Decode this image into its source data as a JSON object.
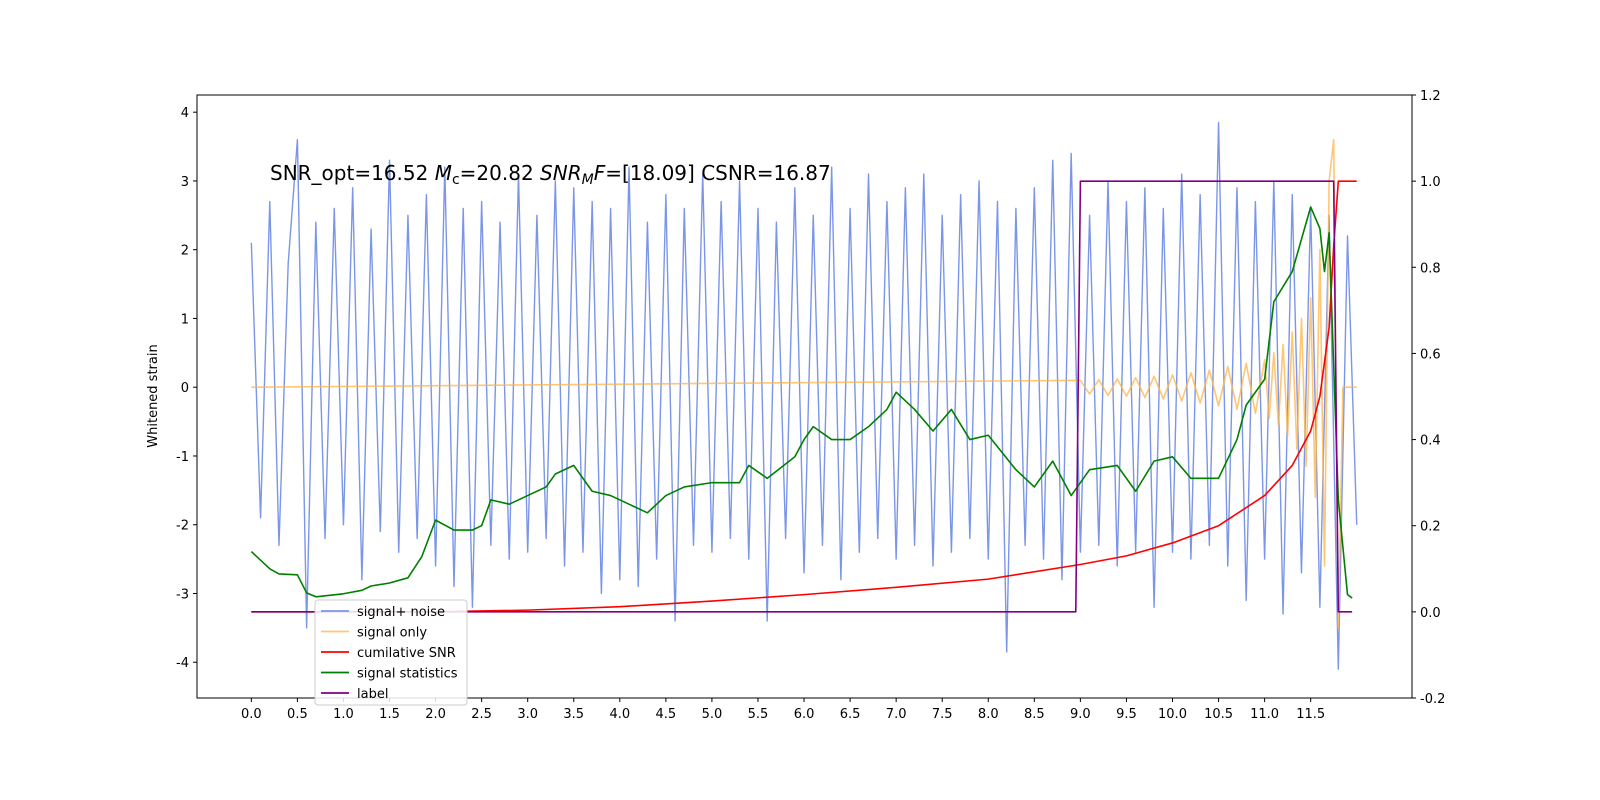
{
  "chart_data": {
    "type": "line",
    "annotation": [
      {
        "text": "SNR_opt=16.52 ",
        "style": "normal"
      },
      {
        "text": "M",
        "style": "italic"
      },
      {
        "text": "c",
        "style": "sub"
      },
      {
        "text": "=20.82  ",
        "style": "normal"
      },
      {
        "text": "SNR",
        "style": "italic"
      },
      {
        "text": "M",
        "style": "italic-sub"
      },
      {
        "text": "F",
        "style": "italic"
      },
      {
        "text": "=[18.09] CSNR=16.87",
        "style": "normal"
      }
    ],
    "y_label": "Whitened strain",
    "xlim": [
      -0.59,
      12.6
    ],
    "ylim": [
      -4.52,
      4.25
    ],
    "y2lim": [
      -0.2,
      1.2
    ],
    "xticks": [
      {
        "value": 0,
        "label": "0.0"
      },
      {
        "value": 0.5,
        "label": "0.5"
      },
      {
        "value": 1,
        "label": "1.0"
      },
      {
        "value": 1.5,
        "label": "1.5"
      },
      {
        "value": 2,
        "label": "2.0"
      },
      {
        "value": 2.5,
        "label": "2.5"
      },
      {
        "value": 3,
        "label": "3.0"
      },
      {
        "value": 3.5,
        "label": "3.5"
      },
      {
        "value": 4,
        "label": "4.0"
      },
      {
        "value": 4.5,
        "label": "4.5"
      },
      {
        "value": 5,
        "label": "5.0"
      },
      {
        "value": 5.5,
        "label": "5.5"
      },
      {
        "value": 6,
        "label": "6.0"
      },
      {
        "value": 6.5,
        "label": "6.5"
      },
      {
        "value": 7,
        "label": "7.0"
      },
      {
        "value": 7.5,
        "label": "7.5"
      },
      {
        "value": 8,
        "label": "8.0"
      },
      {
        "value": 8.5,
        "label": "8.5"
      },
      {
        "value": 9,
        "label": "9.0"
      },
      {
        "value": 9.5,
        "label": "9.5"
      },
      {
        "value": 10,
        "label": "10.0"
      },
      {
        "value": 10.5,
        "label": "10.5"
      },
      {
        "value": 11,
        "label": "11.0"
      },
      {
        "value": 11.5,
        "label": "11.5"
      }
    ],
    "yticks": [
      -4,
      -3,
      -2,
      -1,
      0,
      1,
      2,
      3,
      4
    ],
    "y2ticks": [
      -0.2,
      {
        "value": 0,
        "label": "0.0"
      },
      0.2,
      0.4,
      0.6,
      0.8,
      {
        "value": 1,
        "label": "1.0"
      },
      1.2
    ],
    "legend": "lower left",
    "series": [
      {
        "name": "signal+ noise",
        "color": "#7b96e8",
        "axis": "y",
        "x": [
          0,
          0.1,
          0.2,
          0.3,
          0.4,
          0.5,
          0.6,
          0.7,
          0.8,
          0.9,
          1,
          1.1,
          1.2,
          1.3,
          1.4,
          1.5,
          1.6,
          1.7,
          1.8,
          1.9,
          2,
          2.1,
          2.2,
          2.3,
          2.4,
          2.5,
          2.6,
          2.7,
          2.8,
          2.9,
          3,
          3.1,
          3.2,
          3.3,
          3.4,
          3.5,
          3.6,
          3.7,
          3.8,
          3.9,
          4,
          4.1,
          4.2,
          4.3,
          4.4,
          4.5,
          4.6,
          4.7,
          4.8,
          4.9,
          5,
          5.1,
          5.2,
          5.3,
          5.4,
          5.5,
          5.6,
          5.7,
          5.8,
          5.9,
          6,
          6.1,
          6.2,
          6.3,
          6.4,
          6.5,
          6.6,
          6.7,
          6.8,
          6.9,
          7,
          7.1,
          7.2,
          7.3,
          7.4,
          7.5,
          7.6,
          7.7,
          7.8,
          7.9,
          8,
          8.1,
          8.2,
          8.3,
          8.4,
          8.5,
          8.6,
          8.7,
          8.8,
          8.9,
          9,
          9.1,
          9.2,
          9.3,
          9.4,
          9.5,
          9.6,
          9.7,
          9.8,
          9.9,
          10,
          10.1,
          10.2,
          10.3,
          10.4,
          10.5,
          10.6,
          10.7,
          10.8,
          10.9,
          11,
          11.1,
          11.2,
          11.3,
          11.4,
          11.5,
          11.6,
          11.7,
          11.8,
          11.9,
          12
        ],
        "values": [
          2.1,
          -1.9,
          2.7,
          -2.3,
          1.8,
          3.6,
          -3.5,
          2.4,
          -2.2,
          2.6,
          -2.0,
          2.9,
          -2.8,
          2.3,
          -2.1,
          3.3,
          -2.4,
          2.5,
          -2.2,
          2.8,
          -2.6,
          3.2,
          -2.9,
          2.6,
          -3.2,
          2.7,
          -2.3,
          2.4,
          -2.5,
          3.1,
          -2.4,
          2.5,
          -2.2,
          3.0,
          -2.6,
          2.9,
          -2.4,
          2.7,
          -3.0,
          2.6,
          -2.8,
          3.2,
          -2.9,
          2.4,
          -2.5,
          2.8,
          -3.4,
          2.6,
          -2.3,
          3.1,
          -2.4,
          2.7,
          -2.2,
          3.0,
          -2.5,
          2.6,
          -3.4,
          2.4,
          -2.2,
          2.9,
          -2.7,
          2.5,
          -2.3,
          3.2,
          -2.8,
          2.6,
          -2.4,
          3.1,
          -2.2,
          2.7,
          -2.5,
          2.9,
          -2.3,
          3.1,
          -2.6,
          2.5,
          -2.4,
          2.8,
          -2.2,
          3.0,
          -2.5,
          2.7,
          -3.85,
          2.6,
          -2.3,
          2.9,
          -2.5,
          3.3,
          -2.8,
          3.4,
          -2.4,
          2.5,
          -2.3,
          3.0,
          -2.6,
          2.7,
          -2.4,
          2.9,
          -3.2,
          2.6,
          -2.4,
          3.1,
          -2.5,
          2.8,
          -2.3,
          3.85,
          -2.6,
          2.9,
          -3.1,
          2.7,
          -2.5,
          3.0,
          -3.3,
          2.8,
          -2.7,
          2.6,
          -3.2,
          2.5,
          -4.1,
          2.2,
          -2.0
        ]
      },
      {
        "name": "signal only",
        "color": "#ffb347",
        "axis": "y",
        "x": [
          0,
          9,
          9.1,
          9.2,
          9.3,
          9.4,
          9.5,
          9.6,
          9.7,
          9.8,
          9.9,
          10,
          10.1,
          10.2,
          10.3,
          10.4,
          10.5,
          10.6,
          10.7,
          10.8,
          10.9,
          11,
          11.05,
          11.1,
          11.15,
          11.2,
          11.25,
          11.3,
          11.35,
          11.4,
          11.45,
          11.5,
          11.55,
          11.6,
          11.65,
          11.7,
          11.75,
          11.8,
          11.85,
          12
        ],
        "values": [
          0,
          0.1,
          -0.1,
          0.11,
          -0.12,
          0.12,
          -0.13,
          0.14,
          -0.15,
          0.16,
          -0.17,
          0.18,
          -0.2,
          0.21,
          -0.23,
          0.25,
          -0.27,
          0.3,
          -0.32,
          0.35,
          -0.38,
          0.4,
          -0.45,
          0.5,
          -0.55,
          0.62,
          -0.7,
          0.8,
          -0.9,
          1.0,
          -1.15,
          1.3,
          -1.6,
          2.0,
          -2.6,
          3.0,
          3.6,
          -3.5,
          0,
          0
        ]
      },
      {
        "name": "cumilative SNR",
        "color": "#ff0000",
        "axis": "y2",
        "x": [
          0,
          2,
          3,
          4,
          5,
          6,
          7,
          8,
          9,
          9.5,
          10,
          10.5,
          11,
          11.3,
          11.5,
          11.6,
          11.7,
          11.75,
          11.8,
          12
        ],
        "values": [
          0,
          0,
          0.004,
          0.012,
          0.025,
          0.04,
          0.057,
          0.076,
          0.11,
          0.13,
          0.16,
          0.2,
          0.27,
          0.34,
          0.42,
          0.5,
          0.66,
          0.85,
          1.0,
          1.0
        ]
      },
      {
        "name": "signal statistics",
        "color": "#007f00",
        "axis": "y2",
        "x": [
          0,
          0.1,
          0.2,
          0.3,
          0.5,
          0.6,
          0.7,
          1,
          1.2,
          1.3,
          1.5,
          1.7,
          1.85,
          2,
          2.2,
          2.4,
          2.5,
          2.6,
          2.8,
          3,
          3.2,
          3.3,
          3.5,
          3.7,
          3.9,
          4.1,
          4.3,
          4.5,
          4.7,
          5,
          5.3,
          5.4,
          5.6,
          5.9,
          6,
          6.1,
          6.3,
          6.5,
          6.7,
          6.9,
          7,
          7.2,
          7.4,
          7.6,
          7.8,
          8,
          8.3,
          8.5,
          8.7,
          8.9,
          9.1,
          9.4,
          9.6,
          9.8,
          10,
          10.2,
          10.5,
          10.7,
          10.8,
          11,
          11.1,
          11.3,
          11.5,
          11.6,
          11.65,
          11.7,
          11.8,
          11.9,
          11.95
        ],
        "values": [
          0.14,
          0.12,
          0.1,
          0.088,
          0.086,
          0.044,
          0.035,
          0.042,
          0.05,
          0.06,
          0.067,
          0.079,
          0.128,
          0.213,
          0.19,
          0.19,
          0.2,
          0.26,
          0.25,
          0.27,
          0.29,
          0.32,
          0.34,
          0.28,
          0.27,
          0.25,
          0.23,
          0.27,
          0.29,
          0.3,
          0.3,
          0.34,
          0.31,
          0.36,
          0.4,
          0.43,
          0.4,
          0.4,
          0.43,
          0.47,
          0.51,
          0.47,
          0.42,
          0.47,
          0.4,
          0.41,
          0.33,
          0.29,
          0.35,
          0.27,
          0.33,
          0.34,
          0.28,
          0.35,
          0.36,
          0.31,
          0.31,
          0.4,
          0.48,
          0.54,
          0.72,
          0.79,
          0.94,
          0.89,
          0.79,
          0.88,
          0.26,
          0.04,
          0.032
        ]
      },
      {
        "name": "label",
        "color": "#800080",
        "axis": "y2",
        "x": [
          0,
          8.95,
          9,
          11.75,
          11.8,
          11.95
        ],
        "values": [
          0,
          0,
          1,
          1,
          0,
          0
        ]
      }
    ]
  }
}
